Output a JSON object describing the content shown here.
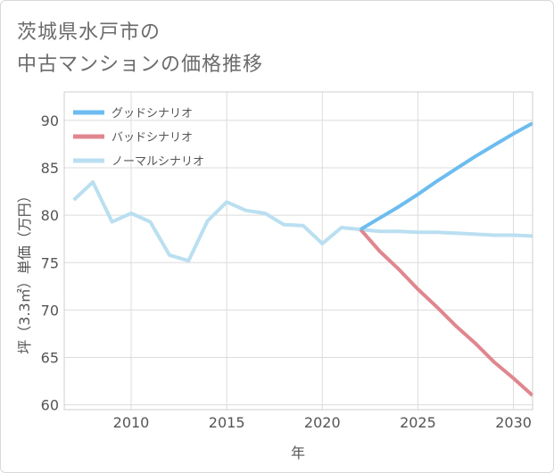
{
  "title_lines": [
    "茨城県水戸市の",
    "中古マンションの価格推移"
  ],
  "chart_data": {
    "type": "line",
    "xlabel": "年",
    "ylabel": "坪（3.3㎡）単価（万円）",
    "xlim": [
      2006.5,
      2031
    ],
    "ylim": [
      59.5,
      93
    ],
    "x_ticks": [
      2010,
      2015,
      2020,
      2025,
      2030
    ],
    "y_ticks": [
      60,
      65,
      70,
      75,
      80,
      85,
      90
    ],
    "grid": true,
    "legend_position": "top-left",
    "series": [
      {
        "name": "グッドシナリオ",
        "color": "#6cbcf0",
        "x": [
          2022,
          2023,
          2024,
          2025,
          2026,
          2027,
          2028,
          2029,
          2030,
          2031
        ],
        "y": [
          78.5,
          79.7,
          80.9,
          82.2,
          83.6,
          84.9,
          86.2,
          87.4,
          88.6,
          89.7
        ]
      },
      {
        "name": "バッドシナリオ",
        "color": "#e0868e",
        "x": [
          2022,
          2023,
          2024,
          2025,
          2026,
          2027,
          2028,
          2029,
          2030,
          2031
        ],
        "y": [
          78.5,
          76.2,
          74.3,
          72.2,
          70.3,
          68.3,
          66.5,
          64.5,
          62.8,
          61.0
        ]
      },
      {
        "name": "ノーマルシナリオ",
        "color": "#b9dff1",
        "x": [
          2007,
          2008,
          2009,
          2010,
          2011,
          2012,
          2013,
          2014,
          2015,
          2016,
          2017,
          2018,
          2019,
          2020,
          2021,
          2022,
          2023,
          2024,
          2025,
          2026,
          2027,
          2028,
          2029,
          2030,
          2031
        ],
        "y": [
          81.6,
          83.5,
          79.3,
          80.2,
          79.3,
          75.8,
          75.2,
          79.4,
          81.4,
          80.5,
          80.2,
          79.0,
          78.9,
          77.0,
          78.7,
          78.5,
          78.3,
          78.3,
          78.2,
          78.2,
          78.1,
          78.0,
          77.9,
          77.9,
          77.8
        ]
      }
    ]
  }
}
